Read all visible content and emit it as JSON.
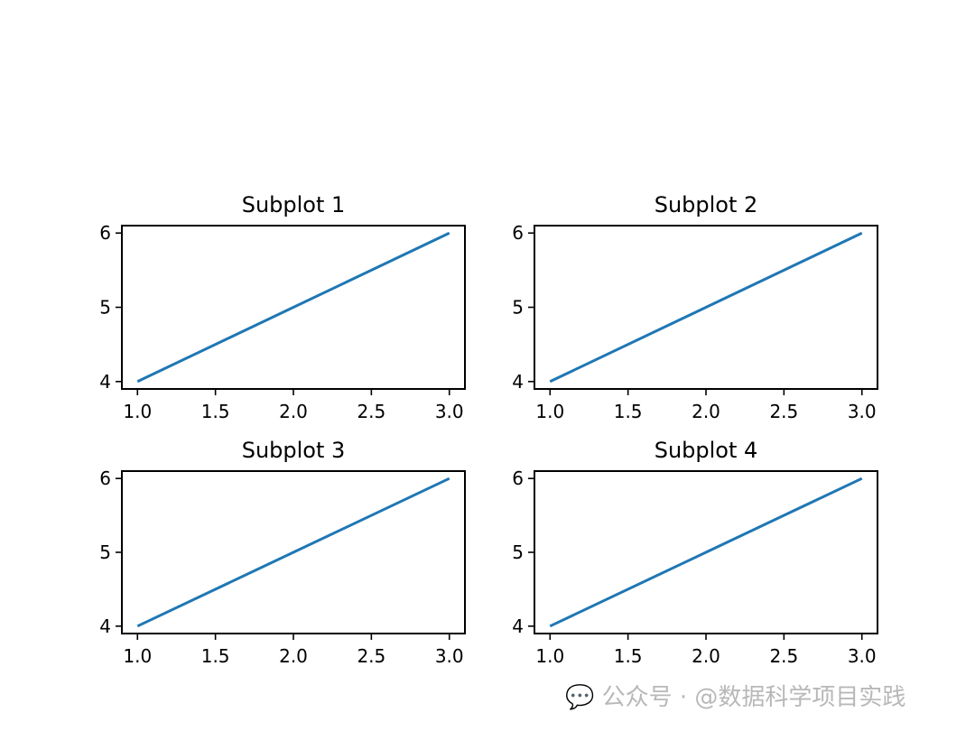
{
  "chart_data": [
    {
      "type": "line",
      "title": "Subplot 1",
      "x": [
        1,
        2,
        3
      ],
      "y": [
        4,
        5,
        6
      ],
      "xlim": [
        0.9,
        3.1
      ],
      "ylim": [
        3.9,
        6.1
      ],
      "xticks": [
        "1.0",
        "1.5",
        "2.0",
        "2.5",
        "3.0"
      ],
      "yticks": [
        "4",
        "5",
        "6"
      ],
      "grid": false,
      "color": "#1f77b4"
    },
    {
      "type": "line",
      "title": "Subplot 2",
      "x": [
        1,
        2,
        3
      ],
      "y": [
        4,
        5,
        6
      ],
      "xlim": [
        0.9,
        3.1
      ],
      "ylim": [
        3.9,
        6.1
      ],
      "xticks": [
        "1.0",
        "1.5",
        "2.0",
        "2.5",
        "3.0"
      ],
      "yticks": [
        "4",
        "5",
        "6"
      ],
      "grid": false,
      "color": "#1f77b4"
    },
    {
      "type": "line",
      "title": "Subplot 3",
      "x": [
        1,
        2,
        3
      ],
      "y": [
        4,
        5,
        6
      ],
      "xlim": [
        0.9,
        3.1
      ],
      "ylim": [
        3.9,
        6.1
      ],
      "xticks": [
        "1.0",
        "1.5",
        "2.0",
        "2.5",
        "3.0"
      ],
      "yticks": [
        "4",
        "5",
        "6"
      ],
      "grid": false,
      "color": "#1f77b4"
    },
    {
      "type": "line",
      "title": "Subplot 4",
      "x": [
        1,
        2,
        3
      ],
      "y": [
        4,
        5,
        6
      ],
      "xlim": [
        0.9,
        3.1
      ],
      "ylim": [
        3.9,
        6.1
      ],
      "xticks": [
        "1.0",
        "1.5",
        "2.0",
        "2.5",
        "3.0"
      ],
      "yticks": [
        "4",
        "5",
        "6"
      ],
      "grid": false,
      "color": "#1f77b4"
    }
  ],
  "watermark": "公众号 · @数据科学项目实践"
}
